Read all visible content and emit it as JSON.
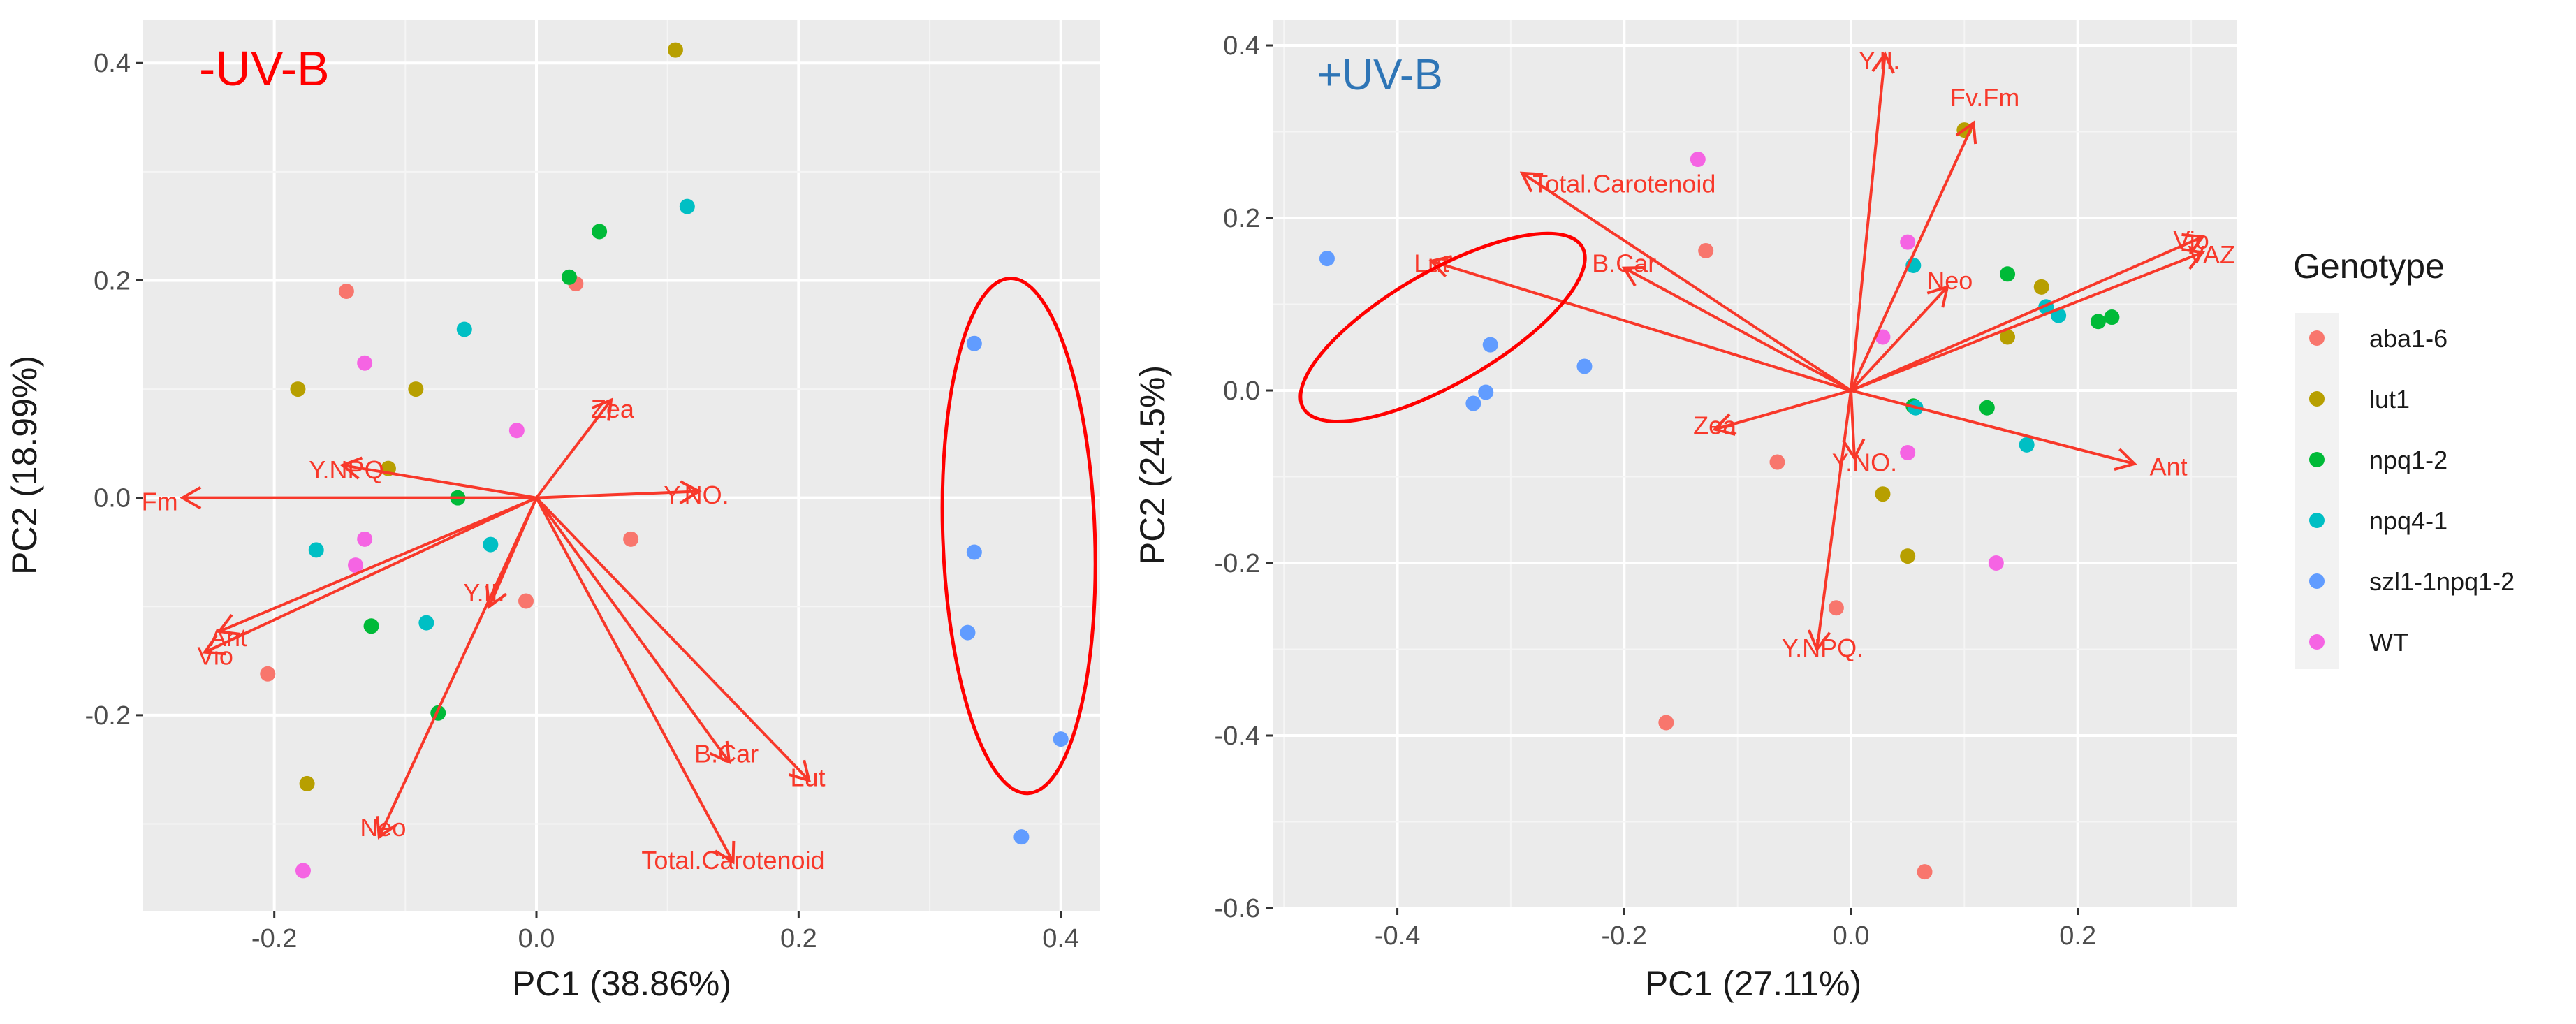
{
  "chart_data": {
    "type": "scatter",
    "subtype": "pca-biplot",
    "colors": {
      "panel_bg": "#ebebeb",
      "grid_major": "#ffffff",
      "grid_minor": "#f5f5f5",
      "arrow": "#f8382a",
      "var_label": "#f8382a",
      "ellipse": "#ff0000"
    },
    "legend": {
      "title": "Genotype",
      "position": "right",
      "entries": [
        {
          "name": "aba1-6",
          "color": "#f8766d"
        },
        {
          "name": "lut1",
          "color": "#b79f00"
        },
        {
          "name": "npq1-2",
          "color": "#00ba38"
        },
        {
          "name": "npq4-1",
          "color": "#00bfc4"
        },
        {
          "name": "szl1-1npq1-2",
          "color": "#619cff"
        },
        {
          "name": "WT",
          "color": "#f564e3"
        }
      ]
    },
    "panels": [
      {
        "title": "-UV-B",
        "title_color": "#ff0000",
        "xlabel": "PC1 (38.86%)",
        "ylabel": "PC2 (18.99%)",
        "xlim": [
          -0.3,
          0.43
        ],
        "ylim": [
          -0.38,
          0.44
        ],
        "xticks": [
          -0.2,
          0.0,
          0.2,
          0.4
        ],
        "xtick_labels": [
          "-0.2",
          "0.0",
          "0.2",
          "0.4"
        ],
        "yticks": [
          -0.2,
          0.0,
          0.2,
          0.4
        ],
        "ytick_labels": [
          "-0.2",
          "0.0",
          "0.2",
          "0.4"
        ],
        "points": [
          {
            "group": "aba1-6",
            "x": -0.145,
            "y": 0.19
          },
          {
            "group": "aba1-6",
            "x": 0.03,
            "y": 0.197
          },
          {
            "group": "aba1-6",
            "x": 0.072,
            "y": -0.038
          },
          {
            "group": "aba1-6",
            "x": -0.008,
            "y": -0.095
          },
          {
            "group": "aba1-6",
            "x": -0.205,
            "y": -0.162
          },
          {
            "group": "lut1",
            "x": 0.106,
            "y": 0.412
          },
          {
            "group": "lut1",
            "x": -0.182,
            "y": 0.1
          },
          {
            "group": "lut1",
            "x": -0.092,
            "y": 0.1
          },
          {
            "group": "lut1",
            "x": -0.113,
            "y": 0.027
          },
          {
            "group": "lut1",
            "x": -0.175,
            "y": -0.263
          },
          {
            "group": "npq1-2",
            "x": 0.048,
            "y": 0.245
          },
          {
            "group": "npq1-2",
            "x": 0.025,
            "y": 0.203
          },
          {
            "group": "npq1-2",
            "x": -0.06,
            "y": 0.0
          },
          {
            "group": "npq1-2",
            "x": -0.126,
            "y": -0.118
          },
          {
            "group": "npq1-2",
            "x": -0.075,
            "y": -0.198
          },
          {
            "group": "npq4-1",
            "x": 0.115,
            "y": 0.268
          },
          {
            "group": "npq4-1",
            "x": -0.055,
            "y": 0.155
          },
          {
            "group": "npq4-1",
            "x": -0.168,
            "y": -0.048
          },
          {
            "group": "npq4-1",
            "x": -0.035,
            "y": -0.043
          },
          {
            "group": "npq4-1",
            "x": -0.084,
            "y": -0.115
          },
          {
            "group": "szl1-1npq1-2",
            "x": 0.334,
            "y": 0.142
          },
          {
            "group": "szl1-1npq1-2",
            "x": 0.334,
            "y": -0.05
          },
          {
            "group": "szl1-1npq1-2",
            "x": 0.329,
            "y": -0.124
          },
          {
            "group": "szl1-1npq1-2",
            "x": 0.4,
            "y": -0.222
          },
          {
            "group": "szl1-1npq1-2",
            "x": 0.37,
            "y": -0.312
          },
          {
            "group": "WT",
            "x": -0.131,
            "y": 0.124
          },
          {
            "group": "WT",
            "x": -0.015,
            "y": 0.062
          },
          {
            "group": "WT",
            "x": -0.131,
            "y": -0.038
          },
          {
            "group": "WT",
            "x": -0.138,
            "y": -0.062
          },
          {
            "group": "WT",
            "x": -0.178,
            "y": -0.343
          }
        ],
        "loadings": [
          {
            "name": "Zea",
            "x": 0.057,
            "y": 0.09,
            "label_x": 0.058,
            "label_y": 0.082
          },
          {
            "name": "Y.NPQ",
            "x": -0.148,
            "y": 0.03,
            "label_x": -0.145,
            "label_y": 0.026
          },
          {
            "name": "Fv.Fm",
            "x": -0.27,
            "y": 0.0,
            "label_x": -0.3,
            "label_y": -0.003
          },
          {
            "name": "Y.NO.",
            "x": 0.124,
            "y": 0.006,
            "label_x": 0.122,
            "label_y": 0.003
          },
          {
            "name": "Y.II.",
            "x": -0.036,
            "y": -0.1,
            "label_x": -0.04,
            "label_y": -0.087
          },
          {
            "name": "Ant",
            "x": -0.242,
            "y": -0.123,
            "label_x": -0.235,
            "label_y": -0.128
          },
          {
            "name": "Vio",
            "x": -0.253,
            "y": -0.142,
            "label_x": -0.245,
            "label_y": -0.145
          },
          {
            "name": "B.Car",
            "x": 0.147,
            "y": -0.243,
            "label_x": 0.145,
            "label_y": -0.235
          },
          {
            "name": "Lut",
            "x": 0.208,
            "y": -0.26,
            "label_x": 0.207,
            "label_y": -0.257
          },
          {
            "name": "Total.Carotenoid",
            "x": 0.15,
            "y": -0.335,
            "label_x": 0.15,
            "label_y": -0.333
          },
          {
            "name": "Neo",
            "x": -0.12,
            "y": -0.312,
            "label_x": -0.117,
            "label_y": -0.303
          }
        ],
        "ellipse": {
          "cx": 0.368,
          "cy": -0.035,
          "rx": 0.058,
          "ry": 0.237,
          "angle": -2
        }
      },
      {
        "title": "+UV-B",
        "title_color": "#2e75b6",
        "xlabel": "PC1 (27.11%)",
        "ylabel": "PC2 (24.5%)",
        "xlim": [
          -0.51,
          0.34
        ],
        "ylim": [
          -0.6,
          0.43
        ],
        "xticks": [
          -0.4,
          -0.2,
          0.0,
          0.2
        ],
        "xtick_labels": [
          "-0.4",
          "-0.2",
          "0.0",
          "0.2"
        ],
        "yticks": [
          -0.6,
          -0.4,
          -0.2,
          0.0,
          0.2,
          0.4
        ],
        "ytick_labels": [
          "-0.6",
          "-0.4",
          "-0.2",
          "0.0",
          "0.2",
          "0.4"
        ],
        "points": [
          {
            "group": "aba1-6",
            "x": -0.128,
            "y": 0.162
          },
          {
            "group": "aba1-6",
            "x": -0.065,
            "y": -0.083
          },
          {
            "group": "aba1-6",
            "x": -0.013,
            "y": -0.252
          },
          {
            "group": "aba1-6",
            "x": -0.163,
            "y": -0.385
          },
          {
            "group": "aba1-6",
            "x": 0.065,
            "y": -0.558
          },
          {
            "group": "lut1",
            "x": 0.1,
            "y": 0.302
          },
          {
            "group": "lut1",
            "x": 0.168,
            "y": 0.12
          },
          {
            "group": "lut1",
            "x": 0.138,
            "y": 0.062
          },
          {
            "group": "lut1",
            "x": 0.028,
            "y": -0.12
          },
          {
            "group": "lut1",
            "x": 0.05,
            "y": -0.192
          },
          {
            "group": "npq1-2",
            "x": 0.138,
            "y": 0.135
          },
          {
            "group": "npq1-2",
            "x": 0.218,
            "y": 0.08
          },
          {
            "group": "npq1-2",
            "x": 0.23,
            "y": 0.085
          },
          {
            "group": "npq1-2",
            "x": 0.12,
            "y": -0.02
          },
          {
            "group": "npq1-2",
            "x": 0.055,
            "y": -0.018
          },
          {
            "group": "npq4-1",
            "x": 0.055,
            "y": 0.145
          },
          {
            "group": "npq4-1",
            "x": 0.172,
            "y": 0.097
          },
          {
            "group": "npq4-1",
            "x": 0.183,
            "y": 0.087
          },
          {
            "group": "npq4-1",
            "x": 0.057,
            "y": -0.02
          },
          {
            "group": "npq4-1",
            "x": 0.155,
            "y": -0.063
          },
          {
            "group": "szl1-1npq1-2",
            "x": -0.462,
            "y": 0.153
          },
          {
            "group": "szl1-1npq1-2",
            "x": -0.318,
            "y": 0.053
          },
          {
            "group": "szl1-1npq1-2",
            "x": -0.235,
            "y": 0.028
          },
          {
            "group": "szl1-1npq1-2",
            "x": -0.322,
            "y": -0.002
          },
          {
            "group": "szl1-1npq1-2",
            "x": -0.333,
            "y": -0.015
          },
          {
            "group": "WT",
            "x": -0.135,
            "y": 0.268
          },
          {
            "group": "WT",
            "x": 0.05,
            "y": 0.172
          },
          {
            "group": "WT",
            "x": 0.028,
            "y": 0.062
          },
          {
            "group": "WT",
            "x": 0.05,
            "y": -0.072
          },
          {
            "group": "WT",
            "x": 0.128,
            "y": -0.2
          }
        ],
        "loadings": [
          {
            "name": "Y.II.",
            "x": 0.03,
            "y": 0.39,
            "label_x": 0.025,
            "label_y": 0.383
          },
          {
            "name": "Fv.Fm",
            "x": 0.108,
            "y": 0.31,
            "label_x": 0.118,
            "label_y": 0.34
          },
          {
            "name": "Total.Carotenoid",
            "x": -0.29,
            "y": 0.252,
            "label_x": -0.2,
            "label_y": 0.24
          },
          {
            "name": "Lut",
            "x": -0.37,
            "y": 0.15,
            "label_x": -0.37,
            "label_y": 0.148
          },
          {
            "name": "B.Car",
            "x": -0.2,
            "y": 0.142,
            "label_x": -0.2,
            "label_y": 0.148
          },
          {
            "name": "Neo",
            "x": 0.085,
            "y": 0.12,
            "label_x": 0.087,
            "label_y": 0.128
          },
          {
            "name": "Vio",
            "x": 0.31,
            "y": 0.178,
            "label_x": 0.3,
            "label_y": 0.175
          },
          {
            "name": "VAZ",
            "x": 0.31,
            "y": 0.16,
            "label_x": 0.318,
            "label_y": 0.158
          },
          {
            "name": "Zea",
            "x": -0.12,
            "y": -0.045,
            "label_x": -0.12,
            "label_y": -0.04
          },
          {
            "name": "Y.NO.",
            "x": 0.003,
            "y": -0.078,
            "label_x": 0.012,
            "label_y": -0.083
          },
          {
            "name": "Ant",
            "x": 0.25,
            "y": -0.085,
            "label_x": 0.28,
            "label_y": -0.088
          },
          {
            "name": "Y.NPQ.",
            "x": -0.03,
            "y": -0.3,
            "label_x": -0.025,
            "label_y": -0.298
          }
        ],
        "ellipse": {
          "cx": -0.36,
          "cy": 0.073,
          "rx": 0.142,
          "ry": 0.065,
          "angle": -30
        }
      }
    ]
  }
}
